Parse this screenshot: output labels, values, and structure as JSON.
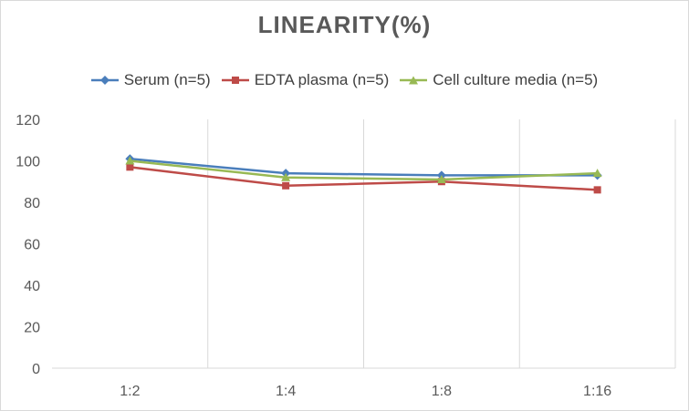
{
  "chart_data": {
    "type": "line",
    "title": "LINEARITY(%)",
    "xlabel": "",
    "ylabel": "",
    "categories": [
      "1:2",
      "1:4",
      "1:8",
      "1:16"
    ],
    "ylim": [
      0,
      120
    ],
    "yticks": [
      0,
      20,
      40,
      60,
      80,
      100,
      120
    ],
    "grid": "vertical",
    "legend": "top",
    "series": [
      {
        "name": "Serum (n=5)",
        "values": [
          101,
          94,
          93,
          93
        ],
        "color": "#4a7ebb",
        "marker": "diamond"
      },
      {
        "name": "EDTA plasma (n=5)",
        "values": [
          97,
          88,
          90,
          86
        ],
        "color": "#be4b48",
        "marker": "square"
      },
      {
        "name": "Cell culture media (n=5)",
        "values": [
          100,
          92,
          91,
          94
        ],
        "color": "#98b954",
        "marker": "triangle"
      }
    ]
  }
}
